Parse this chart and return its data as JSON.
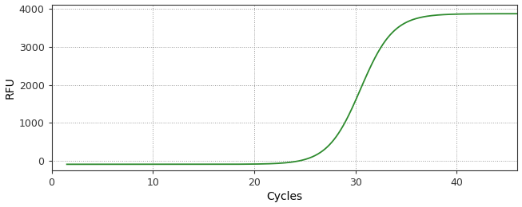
{
  "title": "",
  "xlabel": "Cycles",
  "ylabel": "RFU",
  "line_color": "#2E8B2E",
  "line_width": 1.3,
  "background_color": "#ffffff",
  "plot_bg_color": "#ffffff",
  "xlim": [
    0,
    46
  ],
  "ylim": [
    -250,
    4100
  ],
  "xticks": [
    0,
    10,
    20,
    30,
    40
  ],
  "yticks": [
    0,
    1000,
    2000,
    3000,
    4000
  ],
  "grid_color": "#999999",
  "grid_style": "dotted",
  "sigmoid_L": 3950,
  "sigmoid_k": 0.62,
  "sigmoid_x0": 30.5,
  "sigmoid_baseline": -85,
  "x_start": 1.5,
  "x_end": 46
}
